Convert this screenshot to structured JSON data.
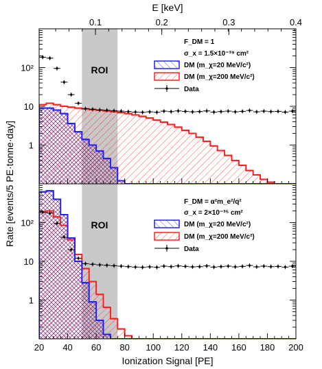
{
  "top_axis": {
    "label": "E [keV]",
    "ticks": [
      "0.1",
      "0.2",
      "0.3",
      "0.4"
    ],
    "tick_values_pe": [
      59.5,
      106,
      153,
      200
    ]
  },
  "xlabel": "Ionization Signal [PE]",
  "ylabel": "Rate [events/5 PE·tonne·day]",
  "x_ticks": [
    "20",
    "40",
    "60",
    "80",
    "100",
    "120",
    "140",
    "160",
    "180",
    "200"
  ],
  "colors": {
    "dm_light": "#1f1fff",
    "dm_heavy": "#ff1f1f",
    "roi_band": "#c8c8c8",
    "data": "#000000",
    "heavy_hatch": "#f08080"
  },
  "chart_data": [
    {
      "type": "line",
      "panel": "top",
      "legend": {
        "header": "F_DM = 1",
        "sigma": "σ_x = 1.5×10⁻³⁹ cm²",
        "dm_light": "DM (m_χ=20 MeV/c²)",
        "dm_heavy": "DM (m_χ=200 MeV/c²)",
        "data": "Data"
      },
      "roi": {
        "label": "ROI",
        "x": [
          50,
          75
        ]
      },
      "xlim": [
        20,
        200
      ],
      "ylim": [
        0.1,
        1000
      ],
      "yscale": "log",
      "y_tick_labels": [
        "1",
        "10",
        "10²"
      ],
      "bin_edges": [
        20,
        25,
        30,
        35,
        40,
        45,
        50,
        55,
        60,
        65,
        70,
        75,
        80,
        85,
        90,
        95,
        100,
        105,
        110,
        115,
        120,
        125,
        130,
        135,
        140,
        145,
        150,
        155,
        160,
        165,
        170,
        175,
        180,
        185,
        190,
        195,
        200
      ],
      "series": [
        {
          "name": "DM (m_χ=200 MeV/c²)",
          "values": [
            11,
            12,
            11,
            10,
            9.5,
            9,
            8.6,
            8.2,
            7.9,
            7.5,
            7.2,
            6.9,
            6.5,
            6.0,
            5.5,
            5.0,
            4.4,
            3.9,
            3.4,
            2.9,
            2.4,
            2.0,
            1.6,
            1.25,
            0.95,
            0.72,
            0.54,
            0.4,
            0.3,
            0.22,
            0.17,
            0.13,
            0.11,
            0.1,
            0.1,
            0.1
          ]
        },
        {
          "name": "DM (m_χ=20 MeV/c²)",
          "values": [
            9,
            9,
            8,
            6.5,
            3.6,
            2.2,
            1.4,
            1.0,
            0.7,
            0.45,
            0.26,
            0.12,
            0.1,
            0.1,
            0.1,
            0.1,
            0.1,
            0.1,
            0.1,
            0.1,
            0.1,
            0.1,
            0.1,
            0.1,
            0.1,
            0.1,
            0.1,
            0.1,
            0.1,
            0.1,
            0.1,
            0.1,
            0.1,
            0.1,
            0.1,
            0.1
          ]
        },
        {
          "name": "Data",
          "x": [
            22.5,
            27.5,
            32.5,
            37.5,
            42.5,
            47.5,
            52.5,
            57.5,
            62.5,
            67.5,
            72.5,
            77.5,
            82.5,
            87.5,
            92.5,
            97.5,
            102.5,
            107.5,
            112.5,
            117.5,
            122.5,
            127.5,
            132.5,
            137.5,
            142.5,
            147.5,
            152.5,
            157.5,
            162.5,
            167.5,
            172.5,
            177.5,
            182.5,
            187.5,
            192.5,
            197.5
          ],
          "y": [
            185,
            175,
            95,
            42,
            20,
            12,
            8.7,
            8.4,
            8.1,
            7.9,
            7.7,
            7.5,
            7.3,
            7.1,
            7.0,
            7.2,
            7.0,
            7.5,
            7.3,
            7.6,
            7.4,
            7.2,
            7.3,
            7.6,
            7.1,
            7.3,
            7.5,
            7.2,
            7.4,
            7.8,
            7.2,
            7.5,
            7.3,
            7.4,
            7.1,
            7.5
          ]
        }
      ]
    },
    {
      "type": "line",
      "panel": "bottom",
      "legend": {
        "header": "F_DM = α²m_e²/q²",
        "sigma": "σ_x = 2×10⁻³⁵ cm²",
        "dm_light": "DM (m_χ=20 MeV/c²)",
        "dm_heavy": "DM (m_χ=200 MeV/c²)",
        "data": "Data"
      },
      "roi": {
        "label": "ROI",
        "x": [
          50,
          75
        ]
      },
      "xlim": [
        20,
        200
      ],
      "ylim": [
        0.1,
        1000
      ],
      "yscale": "log",
      "y_tick_labels": [
        "1",
        "10",
        "10²"
      ],
      "bin_edges": [
        20,
        25,
        30,
        35,
        40,
        45,
        50,
        55,
        60,
        65,
        70,
        75,
        80,
        85,
        90,
        95,
        100,
        105,
        110,
        115,
        120,
        125,
        130,
        135,
        140,
        145,
        150,
        155,
        160,
        165,
        170,
        175,
        180,
        185,
        190,
        195,
        200
      ],
      "series": [
        {
          "name": "DM (m_χ=200 MeV/c²)",
          "values": [
            190,
            200,
            140,
            85,
            36,
            15,
            6.5,
            3.0,
            1.4,
            0.65,
            0.33,
            0.18,
            0.12,
            0.1,
            0.1,
            0.1,
            0.1,
            0.1,
            0.1,
            0.1,
            0.1,
            0.1,
            0.1,
            0.1,
            0.1,
            0.1,
            0.1,
            0.1,
            0.1,
            0.1,
            0.1,
            0.1,
            0.1,
            0.1,
            0.1,
            0.1
          ]
        },
        {
          "name": "DM (m_χ=20 MeV/c²)",
          "values": [
            620,
            660,
            400,
            160,
            40,
            10,
            2.8,
            0.9,
            0.3,
            0.13,
            0.1,
            0.1,
            0.1,
            0.1,
            0.1,
            0.1,
            0.1,
            0.1,
            0.1,
            0.1,
            0.1,
            0.1,
            0.1,
            0.1,
            0.1,
            0.1,
            0.1,
            0.1,
            0.1,
            0.1,
            0.1,
            0.1,
            0.1,
            0.1,
            0.1,
            0.1
          ]
        },
        {
          "name": "Data",
          "x": [
            22.5,
            27.5,
            32.5,
            37.5,
            42.5,
            47.5,
            52.5,
            57.5,
            62.5,
            67.5,
            72.5,
            77.5,
            82.5,
            87.5,
            92.5,
            97.5,
            102.5,
            107.5,
            112.5,
            117.5,
            122.5,
            127.5,
            132.5,
            137.5,
            142.5,
            147.5,
            152.5,
            157.5,
            162.5,
            167.5,
            172.5,
            177.5,
            182.5,
            187.5,
            192.5,
            197.5
          ],
          "y": [
            185,
            175,
            95,
            42,
            20,
            12,
            8.7,
            8.4,
            8.1,
            7.9,
            7.7,
            7.5,
            7.3,
            7.1,
            7.0,
            7.2,
            7.0,
            7.5,
            7.3,
            7.6,
            7.4,
            7.2,
            7.3,
            7.6,
            7.1,
            7.3,
            7.5,
            7.2,
            7.4,
            7.8,
            7.2,
            7.5,
            7.3,
            7.4,
            7.1,
            7.5
          ]
        }
      ]
    }
  ]
}
